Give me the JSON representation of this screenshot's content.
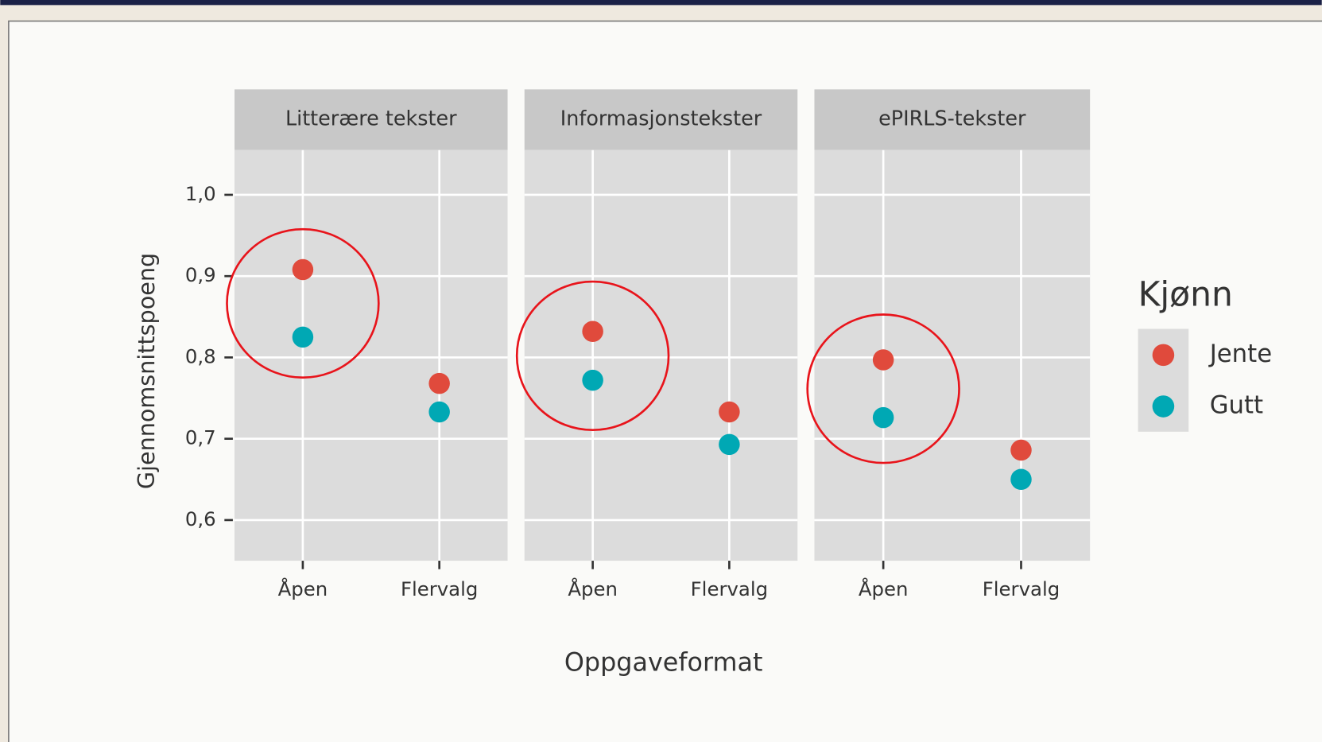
{
  "chart_data": {
    "type": "dot",
    "y_label": "Gjennomsnittspoeng",
    "x_label": "Oppgaveformat",
    "legend_title": "Kjønn",
    "facets": [
      "Litterære tekster",
      "Informasjonstekster",
      "ePIRLS-tekster"
    ],
    "categories": [
      "Åpen",
      "Flervalg"
    ],
    "series": [
      {
        "name": "Jente",
        "color": "#e04a3c",
        "values": [
          [
            0.908,
            0.768
          ],
          [
            0.832,
            0.733
          ],
          [
            0.797,
            0.686
          ]
        ]
      },
      {
        "name": "Gutt",
        "color": "#00a8b4",
        "values": [
          [
            0.825,
            0.733
          ],
          [
            0.772,
            0.693
          ],
          [
            0.726,
            0.65
          ]
        ]
      }
    ],
    "ylim": [
      0.55,
      1.055
    ],
    "yticks": [
      {
        "value": 0.6,
        "label": "0,6"
      },
      {
        "value": 0.7,
        "label": "0,7"
      },
      {
        "value": 0.8,
        "label": "0,8"
      },
      {
        "value": 0.9,
        "label": "0,9"
      },
      {
        "value": 1.0,
        "label": "1,0"
      }
    ],
    "grid": true
  }
}
